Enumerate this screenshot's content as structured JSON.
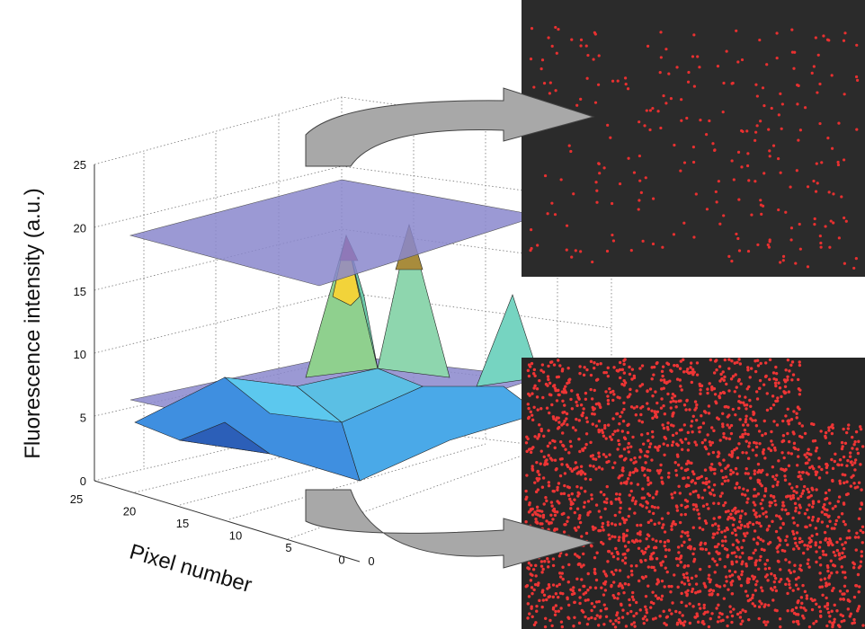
{
  "z_axis": {
    "label": "Fluorescence intensity (a.u.)",
    "ticks": [
      "0",
      "5",
      "10",
      "15",
      "20",
      "25"
    ]
  },
  "x_axis": {
    "label": "Pixel number",
    "ticks": [
      "25",
      "20",
      "15",
      "10",
      "5",
      "0"
    ]
  },
  "y_axis": {
    "ticks": [
      "0"
    ]
  }
}
